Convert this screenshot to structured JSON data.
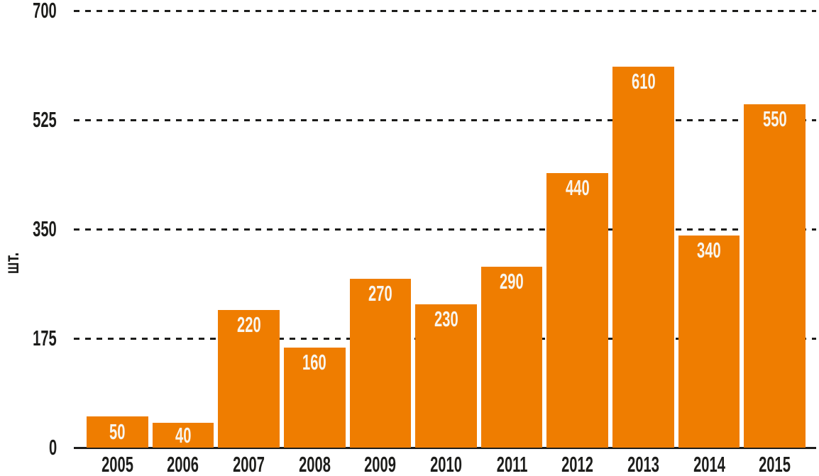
{
  "chart_data": {
    "type": "bar",
    "title": "",
    "xlabel": "",
    "ylabel": "шт.",
    "categories": [
      "2005",
      "2006",
      "2007",
      "2008",
      "2009",
      "2010",
      "2011",
      "2012",
      "2013",
      "2014",
      "2015"
    ],
    "values": [
      50,
      40,
      220,
      160,
      270,
      230,
      290,
      440,
      610,
      340,
      550
    ],
    "yticks": [
      0,
      175,
      350,
      525,
      700
    ],
    "ylim": [
      0,
      700
    ],
    "grid": "horizontal-dashed",
    "legend": "none",
    "bar_color": "#ef7d00",
    "value_label_color": "#f8f5ee",
    "axis_text_color": "#1d1d1b",
    "background_color": "#ffffff"
  }
}
